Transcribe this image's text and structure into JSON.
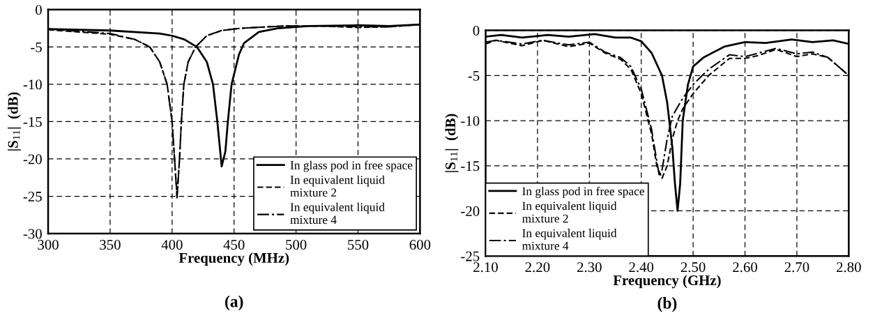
{
  "chart_data": [
    {
      "type": "line",
      "xlabel": "Frequency (MHz)",
      "ylabel": "|S$_{11}$|  (dB)",
      "annotations": [
        "(a)"
      ],
      "xlim": [
        300,
        600
      ],
      "ylim": [
        -30,
        0
      ],
      "xticks": [
        300,
        350,
        400,
        450,
        500,
        550,
        600
      ],
      "yticks": [
        -30,
        -25,
        -20,
        -15,
        -10,
        -5,
        0
      ],
      "grid": true,
      "legend": "bottom right",
      "series": [
        {
          "name": "In glass pod in free space",
          "color": "#000000",
          "line_style": "solid",
          "x": [
            300,
            350,
            390,
            400,
            410,
            420,
            428,
            433,
            436.5,
            440,
            443,
            445,
            448,
            454,
            458,
            470,
            485,
            510,
            550,
            575,
            600
          ],
          "values": [
            -2.6,
            -2.8,
            -3.2,
            -3.5,
            -4,
            -5,
            -7,
            -10,
            -15,
            -21,
            -19,
            -15,
            -10,
            -6,
            -4.5,
            -3,
            -2.5,
            -2.2,
            -2.1,
            -2.2,
            -2.0
          ]
        },
        {
          "name": "In equivalent liquid\nmixture 2",
          "color": "#000000",
          "line_style": "dashed",
          "x": [
            300,
            350,
            370,
            382,
            390,
            396,
            400,
            402,
            404,
            406,
            407.5,
            409.5,
            413,
            419,
            428,
            440,
            455,
            490,
            520,
            550,
            575,
            600
          ],
          "values": [
            -2.7,
            -3.3,
            -4,
            -5,
            -7,
            -10,
            -15,
            -20,
            -25,
            -20,
            -15,
            -10,
            -7,
            -5,
            -3.5,
            -2.8,
            -2.5,
            -2.2,
            -2.2,
            -2.4,
            -2.3,
            -2.0
          ]
        },
        {
          "name": "In equivalent liquid\nmixture 4",
          "color": "#000000",
          "line_style": "dashdot",
          "x": [
            300,
            350,
            370,
            382,
            390,
            396,
            400,
            402,
            404,
            406,
            407.5,
            409.5,
            413,
            419,
            428,
            440,
            455,
            490,
            520,
            550,
            575,
            600
          ],
          "values": [
            -2.6,
            -3.2,
            -4,
            -5,
            -7,
            -10,
            -15,
            -20,
            -25.2,
            -20,
            -15,
            -10,
            -7,
            -5,
            -3.5,
            -2.8,
            -2.5,
            -2.2,
            -2.2,
            -2.3,
            -2.3,
            -2.0
          ]
        }
      ]
    },
    {
      "type": "line",
      "xlabel": "Frequency (GHz)",
      "ylabel": "|S$_{11}$|  (dB)",
      "annotations": [
        "(b)"
      ],
      "xlim": [
        2.1,
        2.8
      ],
      "ylim": [
        -25,
        0
      ],
      "xticks": [
        {
          "value": 2.1,
          "label": "2.10"
        },
        {
          "value": 2.2,
          "label": "2.20"
        },
        {
          "value": 2.3,
          "label": "2.30"
        },
        {
          "value": 2.4,
          "label": "2.40"
        },
        {
          "value": 2.5,
          "label": "2.50"
        },
        {
          "value": 2.6,
          "label": "2.60"
        },
        {
          "value": 2.7,
          "label": "2.70"
        },
        {
          "value": 2.8,
          "label": "2.80"
        }
      ],
      "yticks": [
        -25,
        -20,
        -15,
        -10,
        -5,
        0
      ],
      "grid": true,
      "legend": "bottom left",
      "series": [
        {
          "name": "In glass pod in free space",
          "color": "#000000",
          "line_style": "solid",
          "x": [
            2.1,
            2.13,
            2.17,
            2.22,
            2.26,
            2.31,
            2.35,
            2.38,
            2.4,
            2.42,
            2.44,
            2.45,
            2.46,
            2.465,
            2.47,
            2.475,
            2.48,
            2.49,
            2.5,
            2.52,
            2.56,
            2.6,
            2.64,
            2.69,
            2.73,
            2.77,
            2.8
          ],
          "values": [
            -0.7,
            -0.5,
            -0.8,
            -0.5,
            -0.7,
            -0.4,
            -0.8,
            -0.8,
            -1.2,
            -2.5,
            -5,
            -8,
            -13,
            -17,
            -20,
            -17,
            -10,
            -6,
            -4,
            -3,
            -1.8,
            -1.3,
            -1.4,
            -1.0,
            -1.3,
            -1.1,
            -1.5
          ]
        },
        {
          "name": "In equivalent liquid\nmixture 2",
          "color": "#000000",
          "line_style": "dashed",
          "x": [
            2.1,
            2.12,
            2.17,
            2.21,
            2.26,
            2.3,
            2.33,
            2.36,
            2.38,
            2.4,
            2.42,
            2.43,
            2.44,
            2.45,
            2.46,
            2.47,
            2.48,
            2.5,
            2.53,
            2.57,
            2.6,
            2.625,
            2.66,
            2.7,
            2.73,
            2.76,
            2.8
          ],
          "values": [
            -1.5,
            -1.1,
            -1.7,
            -1.1,
            -1.8,
            -1.4,
            -2.5,
            -3.2,
            -4.3,
            -7,
            -11.5,
            -15,
            -16.4,
            -15,
            -12,
            -10,
            -8.7,
            -7,
            -5,
            -3.1,
            -3.1,
            -2.8,
            -2.1,
            -2.9,
            -2.6,
            -3.0,
            -5
          ]
        },
        {
          "name": "In equivalent liquid\nmixture 4",
          "color": "#000000",
          "line_style": "dashdot",
          "x": [
            2.1,
            2.12,
            2.17,
            2.21,
            2.26,
            2.3,
            2.33,
            2.36,
            2.38,
            2.4,
            2.42,
            2.43,
            2.435,
            2.44,
            2.45,
            2.46,
            2.48,
            2.5,
            2.53,
            2.57,
            2.6,
            2.66,
            2.7,
            2.73,
            2.76,
            2.8
          ],
          "values": [
            -1.3,
            -1.1,
            -1.5,
            -1.1,
            -1.6,
            -1.3,
            -2.4,
            -3.0,
            -4.0,
            -6.5,
            -11,
            -14.5,
            -16.2,
            -15.5,
            -12,
            -9.5,
            -7.5,
            -6,
            -4.3,
            -2.7,
            -2.9,
            -2,
            -2.6,
            -2.4,
            -3.0,
            -5
          ]
        }
      ]
    }
  ]
}
